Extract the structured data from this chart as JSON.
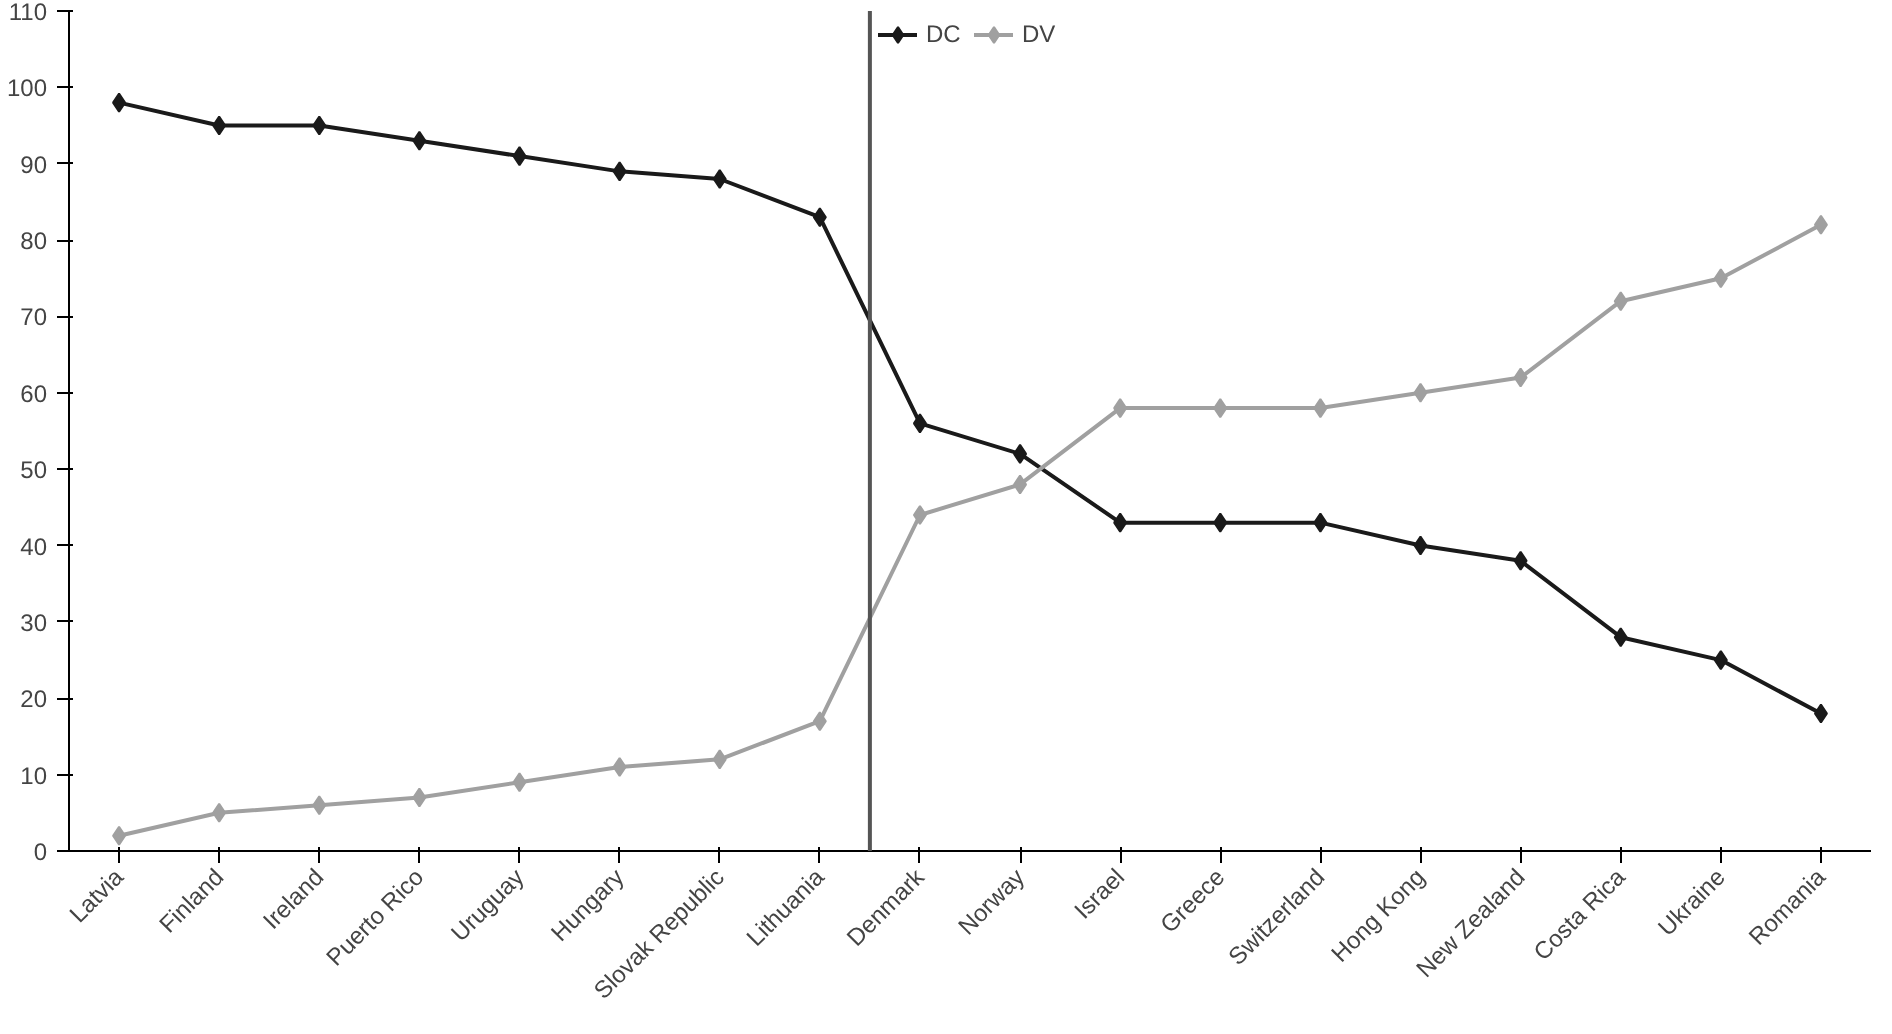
{
  "chart_data": {
    "type": "line",
    "categories": [
      "Latvia",
      "Finland",
      "Ireland",
      "Puerto Rico",
      "Uruguay",
      "Hungary",
      "Slovak Republic",
      "Lithuania",
      "Denmark",
      "Norway",
      "Israel",
      "Greece",
      "Switzerland",
      "Hong Kong",
      "New Zealand",
      "Costa Rica",
      "Ukraine",
      "Romania"
    ],
    "series": [
      {
        "name": "DC",
        "color": "#1a1a1a",
        "values": [
          98,
          95,
          95,
          93,
          91,
          89,
          88,
          83,
          56,
          52,
          43,
          43,
          43,
          40,
          38,
          28,
          25,
          18
        ]
      },
      {
        "name": "DV",
        "color": "#a0a0a0",
        "values": [
          2,
          5,
          6,
          7,
          9,
          11,
          12,
          17,
          44,
          48,
          58,
          58,
          58,
          60,
          62,
          72,
          75,
          82
        ]
      }
    ],
    "ylim": [
      0,
      110
    ],
    "yticks": [
      0,
      10,
      20,
      30,
      40,
      50,
      60,
      70,
      80,
      90,
      100,
      110
    ],
    "marker": "diamond",
    "line_style": "solid",
    "grid": false,
    "legend": "top"
  }
}
